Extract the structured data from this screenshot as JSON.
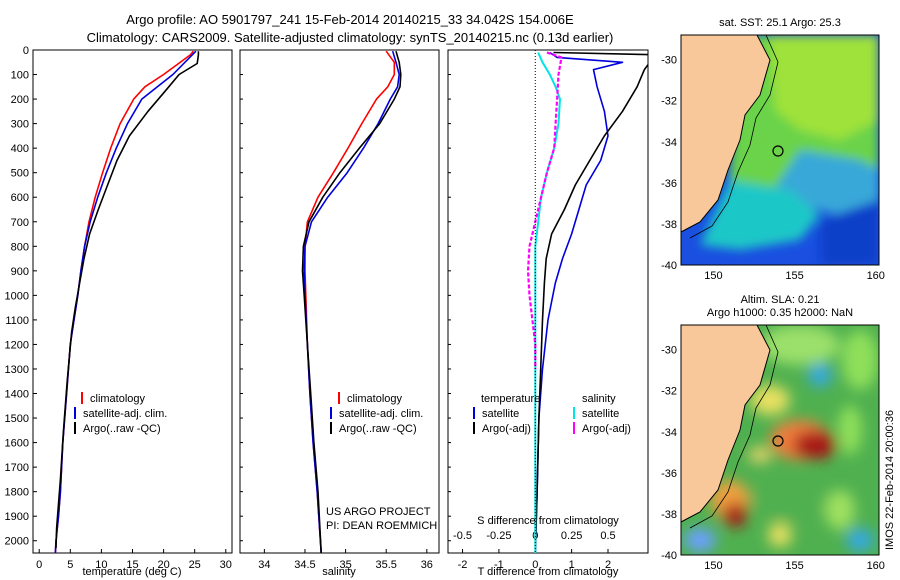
{
  "header": {
    "line1": "Argo profile: AO 5901797_241 15-Feb-2014 20140215_33 34.042S 154.006E",
    "line2": "Climatology: CARS2009. Satellite-adjusted climatology: synTS_20140215.nc (0.13d earlier)"
  },
  "footer": {
    "project": "US ARGO PROJECT",
    "pi": "PI: DEAN ROEMMICH",
    "stamp": "IMOS 22-Feb-2014 20:00:36"
  },
  "colors": {
    "climatology": "#ff0000",
    "satellite": "#0000dd",
    "argo": "#000000",
    "sat_s": "#00e5e5",
    "argo_s": "#ff00ff",
    "land": "#f9c89a"
  },
  "chart_data": [
    {
      "id": "temperature",
      "type": "line",
      "xlabel": "temperature (deg C)",
      "xlim": [
        -1,
        31
      ],
      "ylim": [
        2050,
        0
      ],
      "xticks": [
        "0",
        "5",
        "10",
        "15",
        "20",
        "25",
        "30"
      ],
      "xtick_values": [
        0,
        5,
        10,
        15,
        20,
        25,
        30
      ],
      "yticks": [
        "0",
        "100",
        "200",
        "300",
        "400",
        "500",
        "600",
        "700",
        "800",
        "900",
        "1000",
        "1100",
        "1200",
        "1300",
        "1400",
        "1500",
        "1600",
        "1700",
        "1800",
        "1900",
        "2000"
      ],
      "legend": [
        "climatology",
        "satellite-adj. clim.",
        "Argo(..raw -QC)"
      ],
      "series": [
        {
          "name": "climatology",
          "color": "#ff0000",
          "x": [
            24.8,
            24.3,
            20,
            17,
            15.2,
            13,
            11.5,
            10.2,
            9,
            8,
            7.3,
            6.7,
            6.2,
            5.6,
            5,
            4.4,
            3.8,
            3.4,
            3.1,
            2.7,
            2.6
          ],
          "y": [
            5,
            20,
            100,
            150,
            200,
            300,
            400,
            500,
            600,
            700,
            800,
            900,
            1000,
            1100,
            1200,
            1400,
            1600,
            1800,
            1900,
            2000,
            2050
          ]
        },
        {
          "name": "satellite-adj. clim.",
          "color": "#0000dd",
          "x": [
            25.2,
            24.6,
            21.5,
            19,
            16.5,
            14.2,
            12.4,
            10.8,
            9.4,
            8.2,
            7.3,
            6.7,
            6.2,
            5.6,
            5,
            4.4,
            3.8,
            3.4,
            3.1,
            2.7,
            2.6
          ],
          "y": [
            5,
            20,
            100,
            150,
            200,
            300,
            400,
            500,
            600,
            700,
            800,
            900,
            1000,
            1100,
            1200,
            1400,
            1600,
            1800,
            1900,
            2000,
            2050
          ]
        },
        {
          "name": "Argo(..raw -QC)",
          "color": "#000000",
          "x": [
            25.6,
            25.6,
            25.4,
            22.5,
            20.5,
            17.5,
            14.5,
            12.5,
            11,
            9.5,
            8.1,
            7.2,
            6.5,
            5.8,
            5.2,
            4.5,
            3.9,
            3.4,
            3.1,
            2.8,
            2.7
          ],
          "y": [
            5,
            20,
            55,
            100,
            160,
            250,
            350,
            450,
            550,
            650,
            750,
            850,
            950,
            1050,
            1150,
            1350,
            1550,
            1750,
            1850,
            1950,
            2030
          ]
        }
      ]
    },
    {
      "id": "salinity",
      "type": "line",
      "xlabel": "salinity",
      "xlim": [
        33.7,
        36.15
      ],
      "ylim": [
        2050,
        0
      ],
      "xticks": [
        "34",
        "34.5",
        "35",
        "35.5",
        "36"
      ],
      "xtick_values": [
        34,
        34.5,
        35,
        35.5,
        36
      ],
      "legend": [
        "climatology",
        "satellite-adj. clim.",
        "Argo(..raw -QC)"
      ],
      "series": [
        {
          "name": "climatology",
          "color": "#ff0000",
          "x": [
            35.5,
            35.6,
            35.6,
            35.52,
            35.38,
            35.2,
            35.03,
            34.85,
            34.66,
            34.53,
            34.5,
            34.5,
            34.51,
            34.53,
            34.56,
            34.6,
            34.65,
            34.7
          ],
          "y": [
            5,
            50,
            100,
            150,
            200,
            300,
            400,
            500,
            600,
            700,
            800,
            900,
            1000,
            1200,
            1400,
            1600,
            1800,
            2050
          ]
        },
        {
          "name": "satellite-adj. clim.",
          "color": "#0000dd",
          "x": [
            35.58,
            35.62,
            35.66,
            35.64,
            35.55,
            35.4,
            35.22,
            35.02,
            34.78,
            34.58,
            34.5,
            34.49,
            34.5,
            34.53,
            34.56,
            34.6,
            34.65,
            34.7
          ],
          "y": [
            5,
            50,
            100,
            150,
            200,
            300,
            400,
            500,
            600,
            700,
            800,
            900,
            1000,
            1200,
            1400,
            1600,
            1800,
            2050
          ]
        },
        {
          "name": "Argo(..raw -QC)",
          "color": "#000000",
          "x": [
            35.62,
            35.66,
            35.68,
            35.67,
            35.6,
            35.42,
            35.17,
            34.93,
            34.72,
            34.55,
            34.48,
            34.47,
            34.49,
            34.53,
            34.57,
            34.61,
            34.66,
            34.7
          ],
          "y": [
            5,
            50,
            100,
            150,
            200,
            300,
            400,
            500,
            600,
            700,
            800,
            900,
            1000,
            1200,
            1400,
            1600,
            1800,
            2050
          ]
        }
      ]
    },
    {
      "id": "difference",
      "type": "line",
      "xlabel": "T difference from climatology",
      "top_label": "S difference from climatology",
      "xlim": [
        -2.4,
        3.1
      ],
      "ylim": [
        2050,
        0
      ],
      "xticks": [
        "-2",
        "-1",
        "0",
        "1",
        "2"
      ],
      "xtick_values": [
        -2,
        -1,
        0,
        1,
        2
      ],
      "sticks": [
        "-0.5",
        "-0.25",
        "0",
        "0.25",
        "0.5"
      ],
      "stick_values": [
        -0.5,
        -0.25,
        0,
        0.25,
        0.5
      ],
      "legend_t_title": "temperature",
      "legend_s_title": "salinity",
      "legend": [
        "satellite",
        "Argo(-adj)",
        "satellite",
        "Argo(-adj)"
      ],
      "series": [
        {
          "name": "satellite",
          "qty": "T",
          "color": "#0000dd",
          "x": [
            0.4,
            0.6,
            2.4,
            1.6,
            1.7,
            1.9,
            2.0,
            1.8,
            1.4,
            1.2,
            1.0,
            0.75,
            0.55,
            0.35,
            0.2,
            0.1,
            0.05,
            0.0
          ],
          "y": [
            10,
            30,
            50,
            80,
            150,
            250,
            350,
            450,
            550,
            650,
            750,
            850,
            950,
            1100,
            1300,
            1500,
            1800,
            2050
          ]
        },
        {
          "name": "Argo(-adj)",
          "qty": "T",
          "color": "#000000",
          "x": [
            0.5,
            3.5,
            3.2,
            3.0,
            2.8,
            2.4,
            1.9,
            1.5,
            1.1,
            0.8,
            0.45,
            0.3,
            0.25,
            0.2,
            0.15,
            0.1,
            0.05,
            0.0
          ],
          "y": [
            10,
            20,
            40,
            80,
            150,
            250,
            350,
            450,
            550,
            650,
            750,
            850,
            950,
            1100,
            1300,
            1500,
            1800,
            2050
          ]
        },
        {
          "name": "satellite",
          "qty": "S",
          "color": "#00e5e5",
          "x": [
            0.02,
            0.05,
            0.1,
            0.14,
            0.17,
            0.16,
            0.13,
            0.08,
            0.04,
            0.02,
            0.0,
            0.0,
            0.0,
            0.0,
            0.0,
            0.0
          ],
          "y": [
            10,
            50,
            100,
            150,
            200,
            300,
            400,
            500,
            600,
            700,
            800,
            1000,
            1200,
            1500,
            1800,
            2050
          ]
        },
        {
          "name": "Argo(-adj)",
          "qty": "S",
          "color": "#ff00ff",
          "x": [
            0.08,
            0.18,
            0.16,
            0.15,
            0.14,
            0.13,
            0.08,
            0.04,
            0.0,
            -0.04,
            -0.05,
            -0.04,
            -0.02,
            0.0,
            0.0
          ],
          "y": [
            10,
            30,
            100,
            200,
            300,
            400,
            500,
            600,
            700,
            800,
            900,
            1000,
            1100,
            1200,
            1300
          ]
        }
      ]
    },
    {
      "id": "sst_map",
      "type": "heatmap",
      "title": "sat. SST: 25.1  Argo: 25.3",
      "xticks": [
        "150",
        "155",
        "160"
      ],
      "xtick_values": [
        150,
        155,
        160
      ],
      "yticks": [
        "-30",
        "-32",
        "-34",
        "-36",
        "-38",
        "-40"
      ],
      "ytick_values": [
        -30,
        -32,
        -34,
        -36,
        -38,
        -40
      ],
      "xlim": [
        148,
        160.2
      ],
      "ylim": [
        -28.8,
        -40
      ],
      "marker": {
        "lon": 154.006,
        "lat": -34.042
      }
    },
    {
      "id": "sla_map",
      "type": "heatmap",
      "title1": "Altim. SLA: 0.21",
      "title2": "Argo h1000: 0.35 h2000: NaN",
      "xticks": [
        "150",
        "155",
        "160"
      ],
      "xtick_values": [
        150,
        155,
        160
      ],
      "yticks": [
        "-30",
        "-32",
        "-34",
        "-36",
        "-38",
        "-40"
      ],
      "ytick_values": [
        -30,
        -32,
        -34,
        -36,
        -38,
        -40
      ],
      "xlim": [
        148,
        160.2
      ],
      "ylim": [
        -28.8,
        -40
      ],
      "marker": {
        "lon": 154.006,
        "lat": -34.042
      }
    }
  ]
}
